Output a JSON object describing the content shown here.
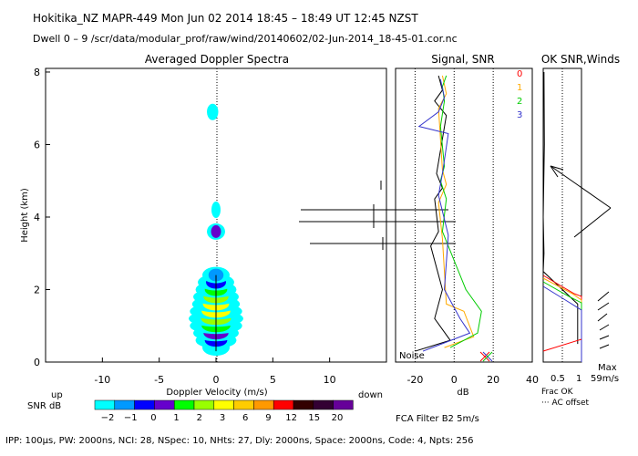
{
  "header": {
    "line1": "Hokitika_NZ   MAPR-449   Mon Jun 02 2014  18:45 – 18:49 UT 12:45 NZST",
    "line2": "Dwell   0 –   9    /scr/data/modular_prof/raw/wind/20140602/02-Jun-2014_18-45-01.cor.nc"
  },
  "footer": {
    "params": "IPP: 100μs,  PW: 2000ns,  NCI:  28,  NSpec: 10,  NHts: 27,  Dly: 2000ns,  Space: 2000ns,  Code: 4,  Npts: 256",
    "fca": "FCA Filter B2   5m/s"
  },
  "colors": {
    "snr_scale": [
      "#00ffff",
      "#0099ff",
      "#0000ff",
      "#6600cc",
      "#00ff00",
      "#99ff00",
      "#ffff00",
      "#ffcc00",
      "#ff9900",
      "#ff0000",
      "#330000",
      "#330033",
      "#660099"
    ],
    "series0": "#ff0000",
    "series1": "#ffaa00",
    "series2": "#00cc00",
    "series3": "#3333cc"
  },
  "chart_data": [
    {
      "type": "heatmap",
      "title": "Averaged Doppler Spectra",
      "ylabel": "Height (km)",
      "xlabel": "Doppler Velocity (m/s)",
      "xlim": [
        -15,
        15
      ],
      "ylim": [
        0,
        8.1
      ],
      "yticks": [
        0,
        2,
        4,
        6,
        8
      ],
      "xticks": [
        -10,
        -5,
        0,
        5,
        10
      ],
      "left_label": "up",
      "right_label": "down",
      "colorbar_label": "SNR dB",
      "colorbar_ticks": [
        "−2",
        "−1",
        "0",
        "1",
        "2",
        "3",
        "6",
        "9",
        "12",
        "15",
        "20"
      ],
      "cells": [
        {
          "v": 0,
          "h": 0.4,
          "w": 1.2,
          "level": 0
        },
        {
          "v": 0,
          "h": 0.6,
          "w": 1.8,
          "level": 2
        },
        {
          "v": 0,
          "h": 0.8,
          "w": 2.0,
          "level": 3
        },
        {
          "v": 0,
          "h": 1.0,
          "w": 2.3,
          "level": 4
        },
        {
          "v": 0,
          "h": 1.2,
          "w": 2.4,
          "level": 5
        },
        {
          "v": 0,
          "h": 1.4,
          "w": 2.3,
          "level": 6
        },
        {
          "v": 0,
          "h": 1.6,
          "w": 2.1,
          "level": 6
        },
        {
          "v": 0,
          "h": 1.8,
          "w": 2.0,
          "level": 5
        },
        {
          "v": 0,
          "h": 2.0,
          "w": 1.8,
          "level": 4
        },
        {
          "v": 0,
          "h": 2.2,
          "w": 1.6,
          "level": 2
        },
        {
          "v": 0,
          "h": 2.4,
          "w": 1.2,
          "level": 1
        },
        {
          "v": 0,
          "h": 3.6,
          "w": 0.8,
          "level": 3
        },
        {
          "v": 0,
          "h": 4.2,
          "w": 0.4,
          "level": 0
        },
        {
          "v": -0.3,
          "h": 6.9,
          "w": 0.5,
          "level": 0
        }
      ]
    },
    {
      "type": "line",
      "title": "Signal, SNR",
      "xlabel": "dB",
      "xlim": [
        -30,
        40
      ],
      "xticks": [
        -20,
        0,
        20,
        40
      ],
      "ylim": [
        0,
        8.1
      ],
      "noise_label": "Noise",
      "series": [
        {
          "name": "0",
          "points": [
            [
              -8,
              7.9
            ],
            [
              -6,
              7.5
            ],
            [
              -10,
              7.2
            ],
            [
              -4,
              6.8
            ],
            [
              -9,
              5.2
            ],
            [
              -6,
              4.8
            ],
            [
              -10,
              4.5
            ],
            [
              -8,
              3.6
            ],
            [
              -12,
              3.2
            ],
            [
              -6,
              2.0
            ],
            [
              -10,
              1.2
            ],
            [
              -2,
              0.6
            ],
            [
              -20,
              0.3
            ]
          ]
        },
        {
          "name": "1",
          "points": [
            [
              -6,
              7.9
            ],
            [
              -4,
              7.4
            ],
            [
              -8,
              7.0
            ],
            [
              -6,
              5.3
            ],
            [
              -4,
              4.9
            ],
            [
              -8,
              4.4
            ],
            [
              -6,
              3.4
            ],
            [
              -4,
              1.6
            ],
            [
              5,
              1.4
            ],
            [
              10,
              0.7
            ],
            [
              -5,
              0.4
            ]
          ]
        },
        {
          "name": "2",
          "points": [
            [
              -4,
              7.9
            ],
            [
              -6,
              7.6
            ],
            [
              -5,
              7.2
            ],
            [
              -7,
              6.5
            ],
            [
              -5,
              5.4
            ],
            [
              -7,
              5.0
            ],
            [
              -4,
              4.5
            ],
            [
              -6,
              3.6
            ],
            [
              6,
              2.0
            ],
            [
              14,
              1.4
            ],
            [
              12,
              0.8
            ],
            [
              -2,
              0.4
            ]
          ]
        },
        {
          "name": "3",
          "points": [
            [
              -7,
              7.8
            ],
            [
              -5,
              7.3
            ],
            [
              -8,
              6.9
            ],
            [
              -18,
              6.5
            ],
            [
              -3,
              6.3
            ],
            [
              -6,
              5.2
            ],
            [
              -8,
              4.6
            ],
            [
              -3,
              3.5
            ],
            [
              -5,
              2.0
            ],
            [
              3,
              1.2
            ],
            [
              8,
              0.8
            ],
            [
              -16,
              0.3
            ]
          ]
        }
      ],
      "legend": [
        "0",
        "1",
        "2",
        "3"
      ],
      "legend_title": "OK SNR,Winds"
    },
    {
      "type": "line",
      "title": "Frac OK",
      "xlim": [
        0,
        1
      ],
      "xticks": [
        "0.5",
        "1"
      ],
      "xlabel": "Frac OK",
      "note": "··· AC offset",
      "max_label": "Max",
      "max_value": "59m/s",
      "series": [
        {
          "name": "ok",
          "points": [
            [
              0.02,
              8.0
            ],
            [
              0.03,
              6.0
            ],
            [
              0.0,
              4.0
            ],
            [
              0.02,
              3.0
            ],
            [
              0.0,
              2.5
            ],
            [
              0.9,
              1.6
            ],
            [
              0.9,
              0.5
            ]
          ]
        }
      ]
    }
  ]
}
